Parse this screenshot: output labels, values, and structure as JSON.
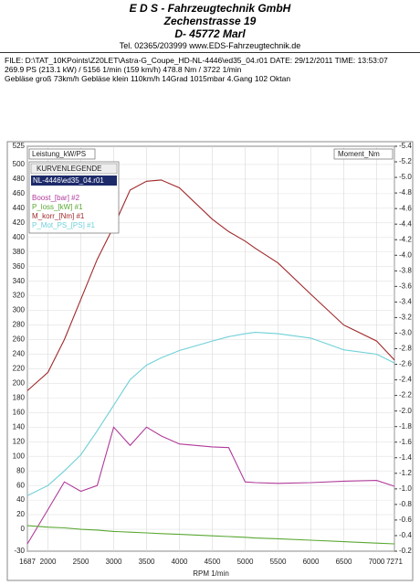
{
  "header": {
    "company": "E D S - Fahrzeugtechnik GmbH",
    "street": "Zechenstrasse 19",
    "city": "D- 45772 Marl",
    "contact": "Tel. 02365/203999    www.EDS-Fahrzeugtechnik.de",
    "file": "FILE: D:\\TAT_10KPoints\\Z20LET\\Astra-G_Coupe_HD-NL-4446\\ed35_04.r01   DATE: 29/12/2011   TIME: 13:53:07",
    "result": "269.9 PS  (213.1 kW) / 5156 1/min (159 km/h)     478.8 Nm / 3722 1/min",
    "conditions": "Gebläse groß 73km/h Gebläse klein 110km/h      14Grad 1015mbar  4.Gang   102 Oktan"
  },
  "chart_data": {
    "type": "line",
    "y_label": "Leistung_kW/PS",
    "y2_label": "Moment_Nm",
    "x_label": "RPM  1/min",
    "legend_title": "KURVENLEGENDE",
    "legend_file": "NL-4446\\ed35_04.r01",
    "x": [
      1687,
      2000,
      2250,
      2500,
      2750,
      3000,
      3250,
      3500,
      3722,
      4000,
      4500,
      4750,
      5000,
      5156,
      5500,
      6000,
      6500,
      7000,
      7271
    ],
    "series": [
      {
        "name": "Boost_[bar] #2",
        "color": "#b03a9a",
        "values": [
          -20,
          27,
          65,
          52,
          60,
          140,
          115,
          140,
          128,
          117,
          113,
          112,
          65,
          64,
          63,
          64,
          66,
          67,
          59
        ]
      },
      {
        "name": "P_loss_[kW] #1",
        "color": "#5aa832",
        "values": [
          5,
          3,
          2,
          0,
          -1,
          -3,
          -4,
          -5,
          -6,
          -7,
          -9,
          -10,
          -11,
          -12,
          -13,
          -15,
          -17,
          -19,
          -20
        ]
      },
      {
        "name": "M_korr_[Nm] #1",
        "color": "#a0282a",
        "values": [
          190,
          215,
          260,
          315,
          370,
          415,
          465,
          477,
          478.8,
          468,
          425,
          408,
          395,
          385,
          365,
          322,
          280,
          258,
          232
        ]
      },
      {
        "name": "P_Mot_PS_[PS] #1",
        "color": "#6fd0d8",
        "values": [
          46,
          60,
          80,
          102,
          135,
          170,
          205,
          225,
          235,
          245,
          258,
          264,
          268,
          269.9,
          268,
          262,
          246,
          240,
          228
        ]
      }
    ],
    "xlim": [
      1687,
      7271
    ],
    "xticks": [
      1687,
      2000,
      2500,
      3000,
      3500,
      4000,
      4500,
      5000,
      5500,
      6000,
      6500,
      7000,
      7271
    ],
    "ylim": [
      -30,
      525
    ],
    "yticks": [
      525,
      500,
      480,
      460,
      440,
      420,
      400,
      380,
      360,
      340,
      320,
      300,
      280,
      260,
      240,
      220,
      200,
      180,
      160,
      140,
      120,
      100,
      80,
      60,
      40,
      20,
      0,
      -30
    ],
    "y2lim": [
      -0.2,
      -5.4
    ],
    "y2ticks": [
      -5.4,
      -5.2,
      {
        "value": -5,
        "label": "-5.0"
      },
      -4.8,
      -4.6,
      -4.4,
      -4.2,
      {
        "value": -4,
        "label": "-4.0"
      },
      -3.8,
      -3.6,
      -3.4,
      -3.2,
      {
        "value": -3,
        "label": "-3.0"
      },
      -2.8,
      -2.6,
      -2.4,
      -2.2,
      {
        "value": -2,
        "label": "-2.0"
      },
      -1.8,
      -1.6,
      -1.4,
      -1.2,
      {
        "value": -1,
        "label": "-1.0"
      },
      -0.8,
      -0.6,
      -0.4,
      -0.2
    ],
    "grid": true
  }
}
